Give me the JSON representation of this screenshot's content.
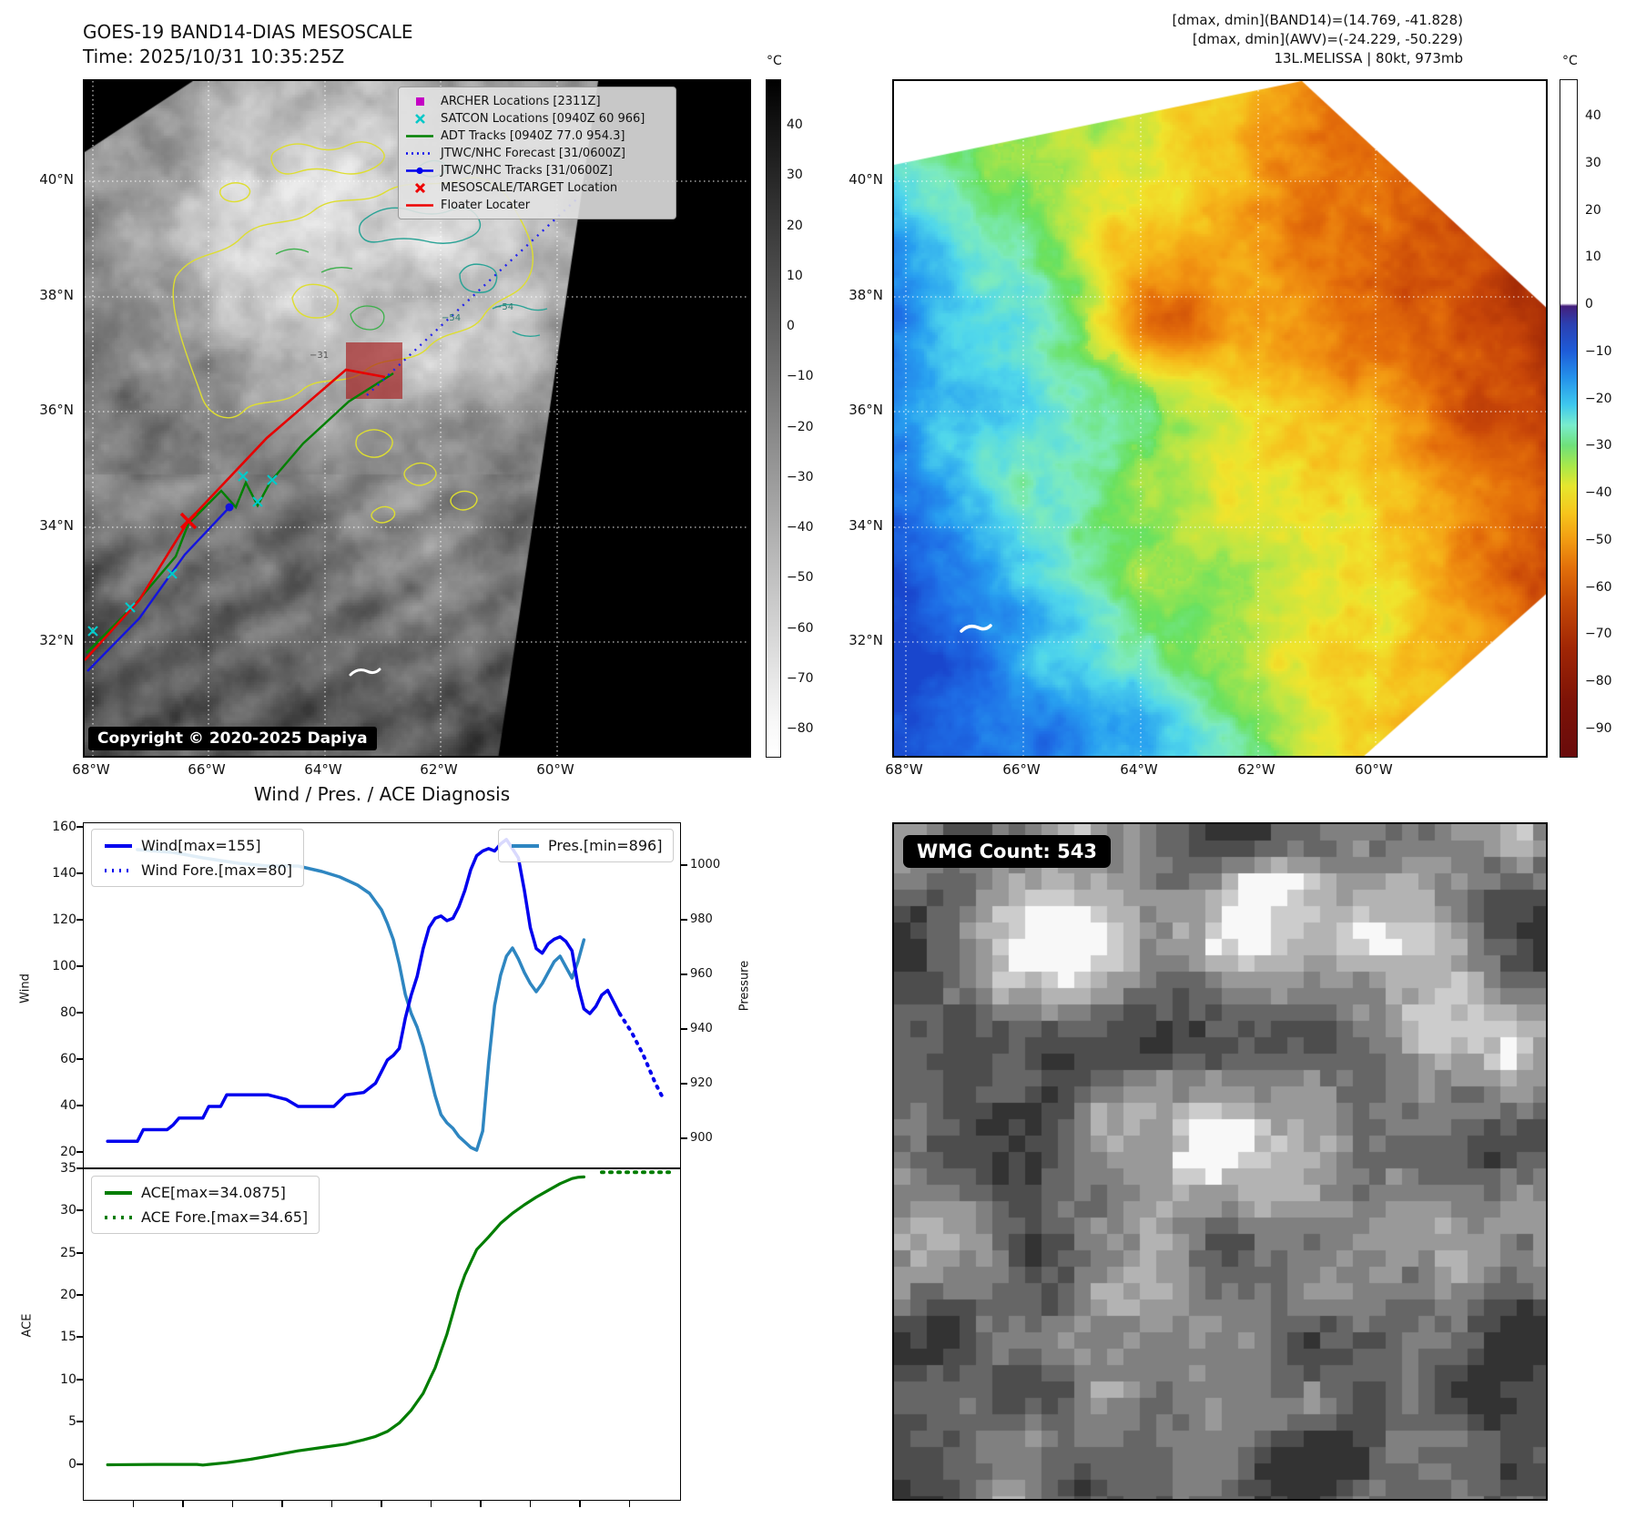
{
  "header": {
    "title_line1": "GOES-19 BAND14-DIAS MESOSCALE",
    "title_line2": "Time: 2025/10/31 10:35:25Z",
    "info_line1": "[dmax, dmin](BAND14)=(14.769, -41.828)",
    "info_line2": "[dmax, dmin](AWV)=(-24.229, -50.229)",
    "info_line3": "13L.MELISSA | 80kt, 973mb"
  },
  "map_left": {
    "lat_ticks": [
      "40°N",
      "38°N",
      "36°N",
      "34°N",
      "32°N"
    ],
    "lon_ticks": [
      "68°W",
      "66°W",
      "64°W",
      "62°W",
      "60°W"
    ],
    "colorbar_unit": "°C",
    "colorbar_ticks": [
      "40",
      "30",
      "20",
      "10",
      "0",
      "−10",
      "−20",
      "−30",
      "−40",
      "−50",
      "−60",
      "−70",
      "−80"
    ],
    "contour_labels": [
      "−31",
      "−54",
      "−54"
    ],
    "copyright": "Copyright © 2020-2025 Dapiya",
    "legend": [
      {
        "label": "ARCHER Locations [2311Z]",
        "marker": "filled-square",
        "color": "#c400c4"
      },
      {
        "label": "SATCON Locations [0940Z 60 966]",
        "marker": "x",
        "color": "#00c8c8"
      },
      {
        "label": "ADT Tracks [0940Z 77.0 954.3]",
        "marker": "solid-line",
        "color": "#008000"
      },
      {
        "label": "JTWC/NHC Forecast [31/0600Z]",
        "marker": "dotted-line",
        "color": "#0000ee"
      },
      {
        "label": "JTWC/NHC Tracks [31/0600Z]",
        "marker": "line-with-dot",
        "color": "#0000ee"
      },
      {
        "label": "MESOSCALE/TARGET Location",
        "marker": "x",
        "color": "#ee0000"
      },
      {
        "label": "Floater Locater",
        "marker": "solid-line",
        "color": "#ee0000"
      }
    ]
  },
  "map_right": {
    "lat_ticks": [
      "40°N",
      "38°N",
      "36°N",
      "34°N",
      "32°N"
    ],
    "lon_ticks": [
      "68°W",
      "66°W",
      "64°W",
      "62°W",
      "60°W"
    ],
    "colorbar_unit": "°C",
    "colorbar_ticks": [
      "40",
      "30",
      "20",
      "10",
      "0",
      "−10",
      "−20",
      "−30",
      "−40",
      "−50",
      "−60",
      "−70",
      "−80",
      "−90"
    ]
  },
  "diagnosis": {
    "title": "Wind / Pres. / ACE Diagnosis",
    "wind_ylabel": "Wind",
    "pressure_ylabel": "Pressure",
    "ace_ylabel": "ACE",
    "wind_yticks": [
      "160",
      "140",
      "120",
      "100",
      "80",
      "60",
      "40",
      "20"
    ],
    "pressure_yticks": [
      "1000",
      "980",
      "960",
      "940",
      "920",
      "900"
    ],
    "ace_yticks": [
      "35",
      "30",
      "25",
      "20",
      "15",
      "10",
      "5",
      "0"
    ],
    "legend_wind": "Wind[max=155]",
    "legend_wind_fore": "Wind Fore.[max=80]",
    "legend_pres": "Pres.[min=896]",
    "legend_ace": "ACE[max=34.0875]",
    "legend_ace_fore": "ACE Fore.[max=34.65]"
  },
  "wmg": {
    "count_label": "WMG Count: 543"
  },
  "colors": {
    "wind": "#0000ee",
    "pressure": "#2e86c1",
    "ace": "#007d00",
    "track_red": "#e60000",
    "track_blue": "#1414dd",
    "track_green": "#008000",
    "satcon_cyan": "#00caca",
    "archer_magenta": "#c400c4",
    "contour_yellow": "#dede30",
    "contour_teal": "#2aa396"
  },
  "chart_data": [
    {
      "type": "line",
      "title": "Wind / Pres. / ACE Diagnosis",
      "x_note": "relative storm timeline 0-100, no x tick labels shown",
      "ylabel": "Wind",
      "ylim": [
        13,
        162
      ],
      "y2label": "Pressure",
      "y2lim": [
        893,
        1016
      ],
      "legend_position": "upper left and upper right",
      "series": [
        {
          "name": "Wind[max=155]",
          "axis": "left",
          "style": "solid",
          "color": "#0000ee",
          "points": [
            [
              4,
              25
            ],
            [
              9,
              25
            ],
            [
              10,
              30
            ],
            [
              14,
              30
            ],
            [
              15,
              32
            ],
            [
              16,
              35
            ],
            [
              20,
              35
            ],
            [
              21,
              40
            ],
            [
              23,
              40
            ],
            [
              24,
              45
            ],
            [
              31,
              45
            ],
            [
              34,
              43
            ],
            [
              36,
              40
            ],
            [
              42,
              40
            ],
            [
              44,
              45
            ],
            [
              47,
              46
            ],
            [
              49,
              50
            ],
            [
              50,
              55
            ],
            [
              51,
              60
            ],
            [
              52,
              62
            ],
            [
              53,
              65
            ],
            [
              54,
              78
            ],
            [
              55,
              88
            ],
            [
              56,
              96
            ],
            [
              57,
              108
            ],
            [
              58,
              117
            ],
            [
              59,
              121
            ],
            [
              60,
              122
            ],
            [
              61,
              120
            ],
            [
              62,
              121
            ],
            [
              63,
              126
            ],
            [
              64,
              133
            ],
            [
              65,
              142
            ],
            [
              66,
              148
            ],
            [
              67,
              150
            ],
            [
              68,
              151
            ],
            [
              69,
              150
            ],
            [
              70,
              153
            ],
            [
              71,
              155
            ],
            [
              72,
              151
            ],
            [
              73,
              147
            ],
            [
              74,
              133
            ],
            [
              75,
              117
            ],
            [
              76,
              108
            ],
            [
              77,
              106
            ],
            [
              78,
              110
            ],
            [
              79,
              112
            ],
            [
              80,
              113
            ],
            [
              81,
              111
            ],
            [
              82,
              107
            ],
            [
              83,
              92
            ],
            [
              84,
              82
            ],
            [
              85,
              80
            ],
            [
              86,
              83
            ],
            [
              87,
              88
            ],
            [
              88,
              90
            ],
            [
              89,
              85
            ],
            [
              90,
              80
            ]
          ]
        },
        {
          "name": "Wind Fore.[max=80]",
          "axis": "left",
          "style": "dotted",
          "color": "#0000ee",
          "points": [
            [
              90,
              80
            ],
            [
              92,
              72
            ],
            [
              94,
              62
            ],
            [
              95,
              56
            ],
            [
              96,
              50
            ],
            [
              97,
              45
            ],
            [
              97.5,
              43
            ]
          ]
        },
        {
          "name": "Pres.[min=896]",
          "axis": "right",
          "style": "solid",
          "color": "#2e86c1",
          "points": [
            [
              9,
              1006
            ],
            [
              15,
              1005
            ],
            [
              20,
              1003
            ],
            [
              26,
              1001
            ],
            [
              31,
              1000
            ],
            [
              36,
              1000
            ],
            [
              40,
              998
            ],
            [
              43,
              996
            ],
            [
              46,
              993
            ],
            [
              48,
              990
            ],
            [
              50,
              984
            ],
            [
              51,
              979
            ],
            [
              52,
              973
            ],
            [
              53,
              964
            ],
            [
              54,
              953
            ],
            [
              55,
              946
            ],
            [
              56,
              941
            ],
            [
              57,
              934
            ],
            [
              58,
              925
            ],
            [
              59,
              916
            ],
            [
              60,
              909
            ],
            [
              61,
              906
            ],
            [
              62,
              904
            ],
            [
              63,
              901
            ],
            [
              64,
              899
            ],
            [
              65,
              897
            ],
            [
              66,
              896
            ],
            [
              67,
              903
            ],
            [
              68,
              928
            ],
            [
              69,
              949
            ],
            [
              70,
              960
            ],
            [
              71,
              967
            ],
            [
              72,
              970
            ],
            [
              73,
              966
            ],
            [
              74,
              961
            ],
            [
              75,
              957
            ],
            [
              76,
              954
            ],
            [
              77,
              957
            ],
            [
              78,
              961
            ],
            [
              79,
              965
            ],
            [
              80,
              967
            ],
            [
              81,
              963
            ],
            [
              82,
              959
            ],
            [
              83,
              965
            ],
            [
              84,
              973
            ]
          ]
        }
      ]
    },
    {
      "type": "line",
      "ylabel": "ACE",
      "ylim": [
        -4.3,
        35
      ],
      "legend_position": "upper left",
      "series": [
        {
          "name": "ACE[max=34.0875]",
          "style": "solid",
          "color": "#007d00",
          "points": [
            [
              4,
              0.05
            ],
            [
              12,
              0.1
            ],
            [
              19,
              0.1
            ],
            [
              20,
              0.02
            ],
            [
              21,
              0.1
            ],
            [
              24,
              0.3
            ],
            [
              28,
              0.7
            ],
            [
              32,
              1.2
            ],
            [
              36,
              1.7
            ],
            [
              40,
              2.1
            ],
            [
              44,
              2.5
            ],
            [
              47,
              3
            ],
            [
              49,
              3.4
            ],
            [
              51,
              4
            ],
            [
              53,
              5
            ],
            [
              55,
              6.5
            ],
            [
              57,
              8.5
            ],
            [
              58,
              10
            ],
            [
              59,
              11.5
            ],
            [
              60,
              13.5
            ],
            [
              61,
              15.5
            ],
            [
              62,
              18
            ],
            [
              63,
              20.5
            ],
            [
              64,
              22.5
            ],
            [
              65,
              24
            ],
            [
              66,
              25.5
            ],
            [
              68,
              27
            ],
            [
              70,
              28.6
            ],
            [
              72,
              29.8
            ],
            [
              74,
              30.8
            ],
            [
              76,
              31.7
            ],
            [
              78,
              32.5
            ],
            [
              80,
              33.3
            ],
            [
              82,
              33.9
            ],
            [
              83,
              34.05
            ],
            [
              84,
              34.09
            ]
          ]
        },
        {
          "name": "ACE Fore.[max=34.65]",
          "style": "dotted",
          "color": "#007d00",
          "points": [
            [
              87,
              34.65
            ],
            [
              99,
              34.65
            ]
          ]
        }
      ]
    }
  ]
}
